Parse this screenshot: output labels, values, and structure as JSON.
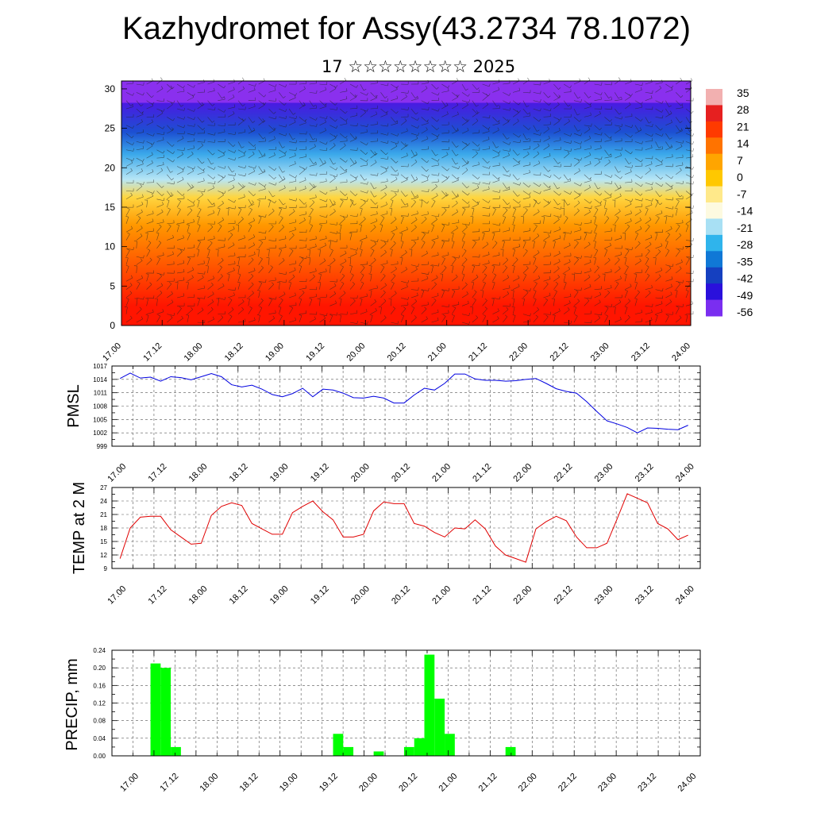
{
  "header": {
    "title": "Kazhydromet for Assy(43.2734 78.1072)",
    "subtitle": "17 ☆☆☆☆☆☆☆☆ 2025"
  },
  "x_tick_labels": [
    "17.00",
    "17.12",
    "18.00",
    "18.12",
    "19.00",
    "19.12",
    "20.00",
    "20.12",
    "21.00",
    "21.12",
    "22.00",
    "22.12",
    "23.00",
    "23.12",
    "24.00"
  ],
  "chart_data": [
    {
      "type": "heatmap",
      "title": "Kazhydromet for Assy(43.2734 78.1072)",
      "subtitle": "17 ☆☆☆☆☆☆☆☆ 2025",
      "x_tick_labels": [
        "17.00",
        "17.12",
        "18.00",
        "18.12",
        "19.00",
        "19.12",
        "20.00",
        "20.12",
        "21.00",
        "21.12",
        "22.00",
        "22.12",
        "23.00",
        "23.12",
        "24.00"
      ],
      "y_ticks": [
        0,
        5,
        10,
        15,
        20,
        25,
        30
      ],
      "ylim": [
        0,
        31
      ],
      "colorbar_labels": [
        "35",
        "28",
        "21",
        "14",
        "7",
        "0",
        "-7",
        "-14",
        "-21",
        "-28",
        "-35",
        "-42",
        "-49",
        "-56"
      ],
      "colorbar_colors": [
        "#f2b0b0",
        "#e62020",
        "#ff3a00",
        "#ff7300",
        "#ffa500",
        "#ffc800",
        "#ffe98a",
        "#fdfae0",
        "#a8e0f4",
        "#2fb4ec",
        "#1078d6",
        "#1540c0",
        "#2a10dc",
        "#7a2ef0"
      ],
      "layer_boundaries_km": [
        0,
        5,
        10,
        15.5,
        17,
        20,
        23.5,
        25.5,
        31
      ],
      "layer_colors": [
        "#ff1500",
        "#ff5500",
        "#ff9800",
        "#ffd640",
        "#b8e6f5",
        "#3aa8ea",
        "#1c50d2",
        "#4a1ae2",
        "#8a30ee"
      ],
      "overlay": "wind barbs"
    },
    {
      "type": "line",
      "ylabel": "PMSL",
      "x_tick_labels": [
        "17.00",
        "17.12",
        "18.00",
        "18.12",
        "19.00",
        "19.12",
        "20.00",
        "20.12",
        "21.00",
        "21.12",
        "22.00",
        "22.12",
        "23.00",
        "23.12",
        "24.00"
      ],
      "y_ticks": [
        999,
        1002,
        1005,
        1008,
        1011,
        1014,
        1017
      ],
      "ylim": [
        999,
        1017
      ],
      "grid": true,
      "series": [
        {
          "color": "#0000e0",
          "x_days": [
            0,
            0.125,
            0.25,
            0.375,
            0.5,
            0.625,
            0.75,
            0.875,
            1,
            1.125,
            1.25,
            1.375,
            1.5,
            1.625,
            1.75,
            1.875,
            2,
            2.125,
            2.25,
            2.375,
            2.5,
            2.625,
            2.75,
            2.875,
            3,
            3.125,
            3.25,
            3.375,
            3.5,
            3.625,
            3.75,
            3.875,
            4,
            4.125,
            4.25,
            4.375,
            4.5,
            4.625,
            4.75,
            4.875,
            5,
            5.125,
            5.25,
            5.375,
            5.5,
            5.625,
            5.75,
            5.875,
            6,
            6.125,
            6.25,
            6.375,
            6.5,
            6.625,
            6.75,
            6.875,
            7
          ],
          "values": [
            1014.2,
            1015.4,
            1014.3,
            1014.5,
            1013.6,
            1014.6,
            1014.4,
            1013.9,
            1014.6,
            1015.3,
            1014.6,
            1012.8,
            1012.3,
            1012.7,
            1011.8,
            1010.6,
            1010.1,
            1010.8,
            1012.0,
            1010.1,
            1011.8,
            1011.6,
            1010.9,
            1009.9,
            1009.8,
            1010.2,
            1009.8,
            1008.7,
            1008.7,
            1010.5,
            1012.0,
            1011.6,
            1013.1,
            1015.2,
            1015.2,
            1014.1,
            1013.8,
            1013.8,
            1013.6,
            1013.7,
            1014.0,
            1014.2,
            1013.1,
            1011.9,
            1011.3,
            1010.9,
            1009.0,
            1006.8,
            1004.7,
            1004.0,
            1003.2,
            1002.0,
            1003.1,
            1003.0,
            1002.8,
            1002.7,
            1003.7
          ]
        }
      ]
    },
    {
      "type": "line",
      "ylabel": "TEMP at 2 M",
      "x_tick_labels": [
        "17.00",
        "17.12",
        "18.00",
        "18.12",
        "19.00",
        "19.12",
        "20.00",
        "20.12",
        "21.00",
        "21.12",
        "22.00",
        "22.12",
        "23.00",
        "23.12",
        "24.00"
      ],
      "y_ticks": [
        9,
        12,
        15,
        18,
        21,
        24,
        27
      ],
      "ylim": [
        9,
        27
      ],
      "grid": true,
      "series": [
        {
          "color": "#e00000",
          "x_days": [
            0,
            0.125,
            0.25,
            0.375,
            0.5,
            0.625,
            0.75,
            0.875,
            1,
            1.125,
            1.25,
            1.375,
            1.5,
            1.625,
            1.75,
            1.875,
            2,
            2.125,
            2.25,
            2.375,
            2.5,
            2.625,
            2.75,
            2.875,
            3,
            3.125,
            3.25,
            3.375,
            3.5,
            3.625,
            3.75,
            3.875,
            4,
            4.125,
            4.25,
            4.375,
            4.5,
            4.625,
            4.75,
            4.875,
            5,
            5.125,
            5.25,
            5.375,
            5.5,
            5.625,
            5.75,
            5.875,
            6,
            6.125,
            6.25,
            6.375,
            6.5,
            6.625,
            6.75,
            6.875,
            7
          ],
          "values": [
            11.2,
            18.0,
            20.4,
            20.6,
            20.6,
            17.6,
            16.0,
            14.4,
            14.6,
            20.8,
            22.8,
            23.6,
            23.0,
            19.0,
            17.8,
            16.6,
            16.6,
            21.4,
            22.8,
            24.0,
            21.6,
            19.8,
            16.0,
            16.0,
            16.6,
            21.8,
            23.8,
            23.4,
            23.4,
            19.0,
            18.4,
            17.0,
            16.0,
            18.0,
            17.8,
            19.8,
            17.8,
            14.0,
            12.0,
            11.2,
            10.4,
            17.8,
            19.4,
            20.6,
            19.6,
            16.0,
            13.6,
            13.6,
            14.6,
            20.0,
            25.6,
            24.6,
            23.6,
            19.0,
            17.8,
            15.4,
            16.4
          ]
        }
      ]
    },
    {
      "type": "bar",
      "ylabel": "PRECIP, mm",
      "x_tick_labels": [
        "17.00",
        "17.12",
        "18.00",
        "18.12",
        "19.00",
        "19.12",
        "20.00",
        "20.12",
        "21.00",
        "21.12",
        "22.00",
        "22.12",
        "23.00",
        "23.12",
        "24.00"
      ],
      "y_ticks": [
        "0.00",
        "0.04",
        "0.08",
        "0.12",
        "0.16",
        "0.20",
        "0.24"
      ],
      "ylim": [
        0,
        0.24
      ],
      "grid": true,
      "color": "#00ff00",
      "bars": [
        {
          "start": 0.375,
          "end": 0.5,
          "value": 0.21
        },
        {
          "start": 0.5,
          "end": 0.625,
          "value": 0.2
        },
        {
          "start": 0.625,
          "end": 0.75,
          "value": 0.02
        },
        {
          "start": 2.625,
          "end": 2.75,
          "value": 0.05
        },
        {
          "start": 2.75,
          "end": 2.875,
          "value": 0.02
        },
        {
          "start": 3.125,
          "end": 3.25,
          "value": 0.01
        },
        {
          "start": 3.5,
          "end": 3.625,
          "value": 0.02
        },
        {
          "start": 3.625,
          "end": 3.75,
          "value": 0.04
        },
        {
          "start": 3.75,
          "end": 3.875,
          "value": 0.23
        },
        {
          "start": 3.875,
          "end": 4.0,
          "value": 0.13
        },
        {
          "start": 4.0,
          "end": 4.125,
          "value": 0.05
        },
        {
          "start": 4.75,
          "end": 4.875,
          "value": 0.02
        }
      ]
    }
  ]
}
